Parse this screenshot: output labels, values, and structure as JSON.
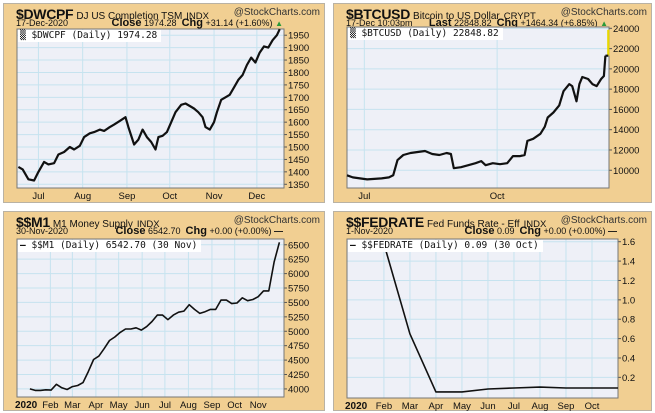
{
  "brand": "@StockCharts.com",
  "panels": [
    {
      "symbol": "$DWCPF",
      "name": "DJ US Completion TSM",
      "exchange": "INDX",
      "date": "17-Dec-2020",
      "price_label": "Close",
      "price": "1974.28",
      "chg_label": "Chg",
      "chg": "+31.14 (+1.60%)",
      "direction": "up",
      "legend": "$DWCPF (Daily) 1974.28"
    },
    {
      "symbol": "$BTCUSD",
      "name": "Bitcoin to US Dollar",
      "exchange": "CRYPT",
      "date": "17-Dec 10:03pm",
      "price_label": "Last",
      "price": "22848.82",
      "chg_label": "Chg",
      "chg": "+1464.34 (+6.85%)",
      "direction": "up",
      "legend": "$BTCUSD (Daily) 22848.82"
    },
    {
      "symbol": "$$M1",
      "name": "M1 Money Supply",
      "exchange": "INDX",
      "date": "30-Nov-2020",
      "price_label": "Close",
      "price": "6542.70",
      "chg_label": "Chg",
      "chg": "+0.00 (+0.00%)",
      "direction": "flat",
      "legend": "$$M1 (Daily) 6542.70 (30 Nov)"
    },
    {
      "symbol": "$$FEDRATE",
      "name": "Fed Funds Rate - Eff",
      "exchange": "INDX",
      "date": "1-Nov-2020",
      "price_label": "Close",
      "price": "0.09",
      "chg_label": "Chg",
      "chg": "+0.00 (+0.00%)",
      "direction": "flat",
      "legend": "$$FEDRATE (Daily) 0.09 (30 Oct)"
    }
  ],
  "colors": {
    "panel_bg": "#F1CF92",
    "plot_bg": "#EEF0F7",
    "grid": "#C6E3EF",
    "line": "#111111",
    "last_bar": "#E8D800",
    "up": "#2a9a3a"
  },
  "chart_data": [
    {
      "type": "line",
      "title": "$DWCPF (Daily) 1974.28",
      "xunit": "day-of-year 2020",
      "xlim": [
        168,
        355
      ],
      "ylim": [
        1335,
        1975
      ],
      "yticks": [
        1350,
        1400,
        1450,
        1500,
        1550,
        1600,
        1650,
        1700,
        1750,
        1800,
        1850,
        1900,
        1950
      ],
      "xticks": [
        {
          "x": 183,
          "label": "Jul"
        },
        {
          "x": 214,
          "label": "Aug"
        },
        {
          "x": 245,
          "label": "Sep"
        },
        {
          "x": 275,
          "label": "Oct"
        },
        {
          "x": 306,
          "label": "Nov"
        },
        {
          "x": 336,
          "label": "Dec"
        }
      ],
      "series": [
        {
          "name": "$DWCPF",
          "points": [
            [
              169,
              1420
            ],
            [
              172,
              1410
            ],
            [
              176,
              1370
            ],
            [
              180,
              1365
            ],
            [
              183,
              1400
            ],
            [
              187,
              1440
            ],
            [
              190,
              1430
            ],
            [
              194,
              1435
            ],
            [
              197,
              1470
            ],
            [
              201,
              1480
            ],
            [
              205,
              1500
            ],
            [
              208,
              1490
            ],
            [
              212,
              1505
            ],
            [
              215,
              1540
            ],
            [
              219,
              1555
            ],
            [
              222,
              1560
            ],
            [
              226,
              1570
            ],
            [
              229,
              1565
            ],
            [
              233,
              1580
            ],
            [
              236,
              1590
            ],
            [
              240,
              1605
            ],
            [
              244,
              1620
            ],
            [
              246,
              1580
            ],
            [
              250,
              1510
            ],
            [
              253,
              1530
            ],
            [
              256,
              1570
            ],
            [
              259,
              1540
            ],
            [
              262,
              1520
            ],
            [
              265,
              1490
            ],
            [
              267,
              1540
            ],
            [
              270,
              1545
            ],
            [
              273,
              1560
            ],
            [
              276,
              1600
            ],
            [
              279,
              1640
            ],
            [
              283,
              1670
            ],
            [
              286,
              1675
            ],
            [
              289,
              1665
            ],
            [
              292,
              1655
            ],
            [
              295,
              1640
            ],
            [
              298,
              1620
            ],
            [
              300,
              1580
            ],
            [
              303,
              1570
            ],
            [
              306,
              1600
            ],
            [
              308,
              1640
            ],
            [
              311,
              1690
            ],
            [
              314,
              1700
            ],
            [
              317,
              1710
            ],
            [
              320,
              1740
            ],
            [
              323,
              1770
            ],
            [
              326,
              1790
            ],
            [
              329,
              1830
            ],
            [
              332,
              1860
            ],
            [
              335,
              1840
            ],
            [
              338,
              1880
            ],
            [
              341,
              1905
            ],
            [
              344,
              1900
            ],
            [
              347,
              1930
            ],
            [
              350,
              1950
            ],
            [
              352,
              1974.28
            ]
          ]
        }
      ]
    },
    {
      "type": "line",
      "title": "$BTCUSD (Daily) 22848.82",
      "xunit": "day-of-year 2020",
      "xlim": [
        171,
        352.5
      ],
      "ylim": [
        8250,
        24130
      ],
      "yticks": [
        10000,
        12000,
        14000,
        16000,
        18000,
        20000,
        22000,
        24000
      ],
      "xticks": [
        {
          "x": 183,
          "label": "Jul"
        },
        {
          "x": 275,
          "label": "Oct"
        }
      ],
      "series": [
        {
          "name": "$BTCUSD",
          "points": [
            [
              171,
              9500
            ],
            [
              175,
              9300
            ],
            [
              180,
              9200
            ],
            [
              185,
              9100
            ],
            [
              190,
              9150
            ],
            [
              195,
              9200
            ],
            [
              200,
              9300
            ],
            [
              203,
              9500
            ],
            [
              206,
              11000
            ],
            [
              210,
              11500
            ],
            [
              215,
              11700
            ],
            [
              220,
              11800
            ],
            [
              225,
              11900
            ],
            [
              230,
              11600
            ],
            [
              235,
              11500
            ],
            [
              240,
              11700
            ],
            [
              243,
              11600
            ],
            [
              245,
              10200
            ],
            [
              250,
              10300
            ],
            [
              255,
              10500
            ],
            [
              260,
              10700
            ],
            [
              264,
              10900
            ],
            [
              267,
              10500
            ],
            [
              272,
              10700
            ],
            [
              277,
              10600
            ],
            [
              282,
              10700
            ],
            [
              286,
              11400
            ],
            [
              291,
              11400
            ],
            [
              294,
              11500
            ],
            [
              296,
              12900
            ],
            [
              300,
              13100
            ],
            [
              305,
              13600
            ],
            [
              308,
              14300
            ],
            [
              310,
              15200
            ],
            [
              314,
              15700
            ],
            [
              318,
              16400
            ],
            [
              321,
              17800
            ],
            [
              325,
              18500
            ],
            [
              327,
              18300
            ],
            [
              330,
              16800
            ],
            [
              332,
              18500
            ],
            [
              334,
              19200
            ],
            [
              338,
              19000
            ],
            [
              341,
              18500
            ],
            [
              344,
              18300
            ],
            [
              347,
              19000
            ],
            [
              349,
              19300
            ],
            [
              350,
              21300
            ],
            [
              352,
              22848.82
            ]
          ]
        }
      ]
    },
    {
      "type": "line",
      "title": "$$M1 (Daily) 6542.70 (30 Nov)",
      "xunit": "day-of-year 2020",
      "xlim": [
        -12,
        340
      ],
      "ylim": [
        3860,
        6600
      ],
      "yticks": [
        4000,
        4250,
        4500,
        4750,
        5000,
        5250,
        5500,
        5750,
        6000,
        6250,
        6500
      ],
      "xticks": [
        {
          "x": -3,
          "label": "2020",
          "bold": true
        },
        {
          "x": 32,
          "label": "Feb"
        },
        {
          "x": 61,
          "label": "Mar"
        },
        {
          "x": 92,
          "label": "Apr"
        },
        {
          "x": 122,
          "label": "May"
        },
        {
          "x": 153,
          "label": "Jun"
        },
        {
          "x": 183,
          "label": "Jul"
        },
        {
          "x": 214,
          "label": "Aug"
        },
        {
          "x": 245,
          "label": "Sep"
        },
        {
          "x": 275,
          "label": "Oct"
        },
        {
          "x": 306,
          "label": "Nov"
        }
      ],
      "series": [
        {
          "name": "$$M1",
          "points": [
            [
              5,
              4000
            ],
            [
              12,
              3975
            ],
            [
              19,
              3975
            ],
            [
              26,
              3985
            ],
            [
              33,
              3980
            ],
            [
              40,
              4080
            ],
            [
              47,
              4020
            ],
            [
              54,
              3990
            ],
            [
              61,
              4040
            ],
            [
              68,
              4060
            ],
            [
              75,
              4110
            ],
            [
              82,
              4300
            ],
            [
              89,
              4510
            ],
            [
              96,
              4570
            ],
            [
              103,
              4700
            ],
            [
              110,
              4840
            ],
            [
              117,
              4900
            ],
            [
              124,
              4980
            ],
            [
              131,
              5040
            ],
            [
              138,
              5040
            ],
            [
              145,
              5060
            ],
            [
              152,
              5020
            ],
            [
              159,
              5080
            ],
            [
              166,
              5170
            ],
            [
              173,
              5280
            ],
            [
              180,
              5280
            ],
            [
              187,
              5200
            ],
            [
              194,
              5280
            ],
            [
              201,
              5330
            ],
            [
              208,
              5350
            ],
            [
              215,
              5460
            ],
            [
              222,
              5380
            ],
            [
              229,
              5310
            ],
            [
              236,
              5340
            ],
            [
              243,
              5380
            ],
            [
              250,
              5380
            ],
            [
              257,
              5540
            ],
            [
              264,
              5540
            ],
            [
              271,
              5480
            ],
            [
              278,
              5490
            ],
            [
              285,
              5580
            ],
            [
              292,
              5530
            ],
            [
              299,
              5550
            ],
            [
              306,
              5600
            ],
            [
              313,
              5700
            ],
            [
              320,
              5700
            ],
            [
              327,
              6200
            ],
            [
              334,
              6542.7
            ]
          ]
        }
      ]
    },
    {
      "type": "line",
      "title": "$$FEDRATE (Daily) 0.09 (30 Oct)",
      "xunit": "month index 2020 (Jan=0)",
      "xlim": [
        -0.42,
        10
      ],
      "ylim": [
        -0.013,
        1.628
      ],
      "yticks": [
        0.2,
        0.4,
        0.6,
        0.8,
        1.0,
        1.2,
        1.4,
        1.6
      ],
      "xticks": [
        {
          "x": 0,
          "label": "2020",
          "bold": true
        },
        {
          "x": 1,
          "label": "Feb"
        },
        {
          "x": 2,
          "label": "Mar"
        },
        {
          "x": 3,
          "label": "Apr"
        },
        {
          "x": 4,
          "label": "May"
        },
        {
          "x": 5,
          "label": "Jun"
        },
        {
          "x": 6,
          "label": "Jul"
        },
        {
          "x": 7,
          "label": "Aug"
        },
        {
          "x": 8,
          "label": "Sep"
        },
        {
          "x": 9,
          "label": "Oct"
        }
      ],
      "series": [
        {
          "name": "$$FEDRATE",
          "points": [
            [
              1,
              1.58
            ],
            [
              2,
              0.65
            ],
            [
              3,
              0.05
            ],
            [
              4,
              0.05
            ],
            [
              5,
              0.08
            ],
            [
              6,
              0.09
            ],
            [
              7,
              0.1
            ],
            [
              8,
              0.09
            ],
            [
              9,
              0.09
            ],
            [
              10,
              0.09
            ]
          ]
        }
      ]
    }
  ]
}
